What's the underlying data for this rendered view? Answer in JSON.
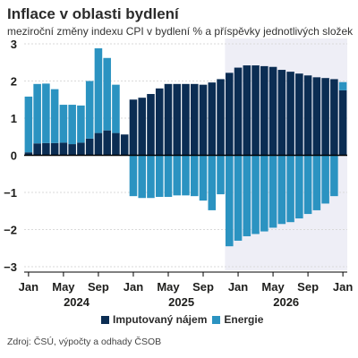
{
  "title": "Inflace v oblasti bydlení",
  "subtitle": "meziroční změny indexu CPI v bydlení % a příspěvky jednotlivých složek",
  "source": "Zdroj: ČSÚ, výpočty a odhady ČSOB",
  "colors": {
    "imputed_rent": "#0b2d53",
    "energy": "#2b93c1",
    "forecast_shade": "#eeeef6",
    "grid": "#d9d9d9",
    "zero_line": "#000000"
  },
  "chart_data": {
    "type": "bar",
    "stacked": true,
    "ylim": [
      -3,
      3
    ],
    "yticks": [
      3,
      2,
      1,
      0,
      -1,
      -2,
      -3
    ],
    "forecast_start": "2025-12",
    "x_ticks": [
      {
        "index": 0,
        "label": "Jan"
      },
      {
        "index": 4,
        "label": "May"
      },
      {
        "index": 8,
        "label": "Sep"
      },
      {
        "index": 12,
        "label": "Jan"
      },
      {
        "index": 16,
        "label": "May"
      },
      {
        "index": 20,
        "label": "Sep"
      },
      {
        "index": 24,
        "label": "Jan"
      },
      {
        "index": 28,
        "label": "May"
      },
      {
        "index": 32,
        "label": "Sep"
      },
      {
        "index": 36,
        "label": "Jan"
      }
    ],
    "year_labels": [
      {
        "index": 5.5,
        "label": "2024"
      },
      {
        "index": 17.5,
        "label": "2025"
      },
      {
        "index": 29.5,
        "label": "2026"
      }
    ],
    "categories": [
      "2024-01",
      "2024-02",
      "2024-03",
      "2024-04",
      "2024-05",
      "2024-06",
      "2024-07",
      "2024-08",
      "2024-09",
      "2024-10",
      "2024-11",
      "2024-12",
      "2025-01",
      "2025-02",
      "2025-03",
      "2025-04",
      "2025-05",
      "2025-06",
      "2025-07",
      "2025-08",
      "2025-09",
      "2025-10",
      "2025-11",
      "2025-12",
      "2026-01",
      "2026-02",
      "2026-03",
      "2026-04",
      "2026-05",
      "2026-06",
      "2026-07",
      "2026-08",
      "2026-09",
      "2026-10",
      "2026-11",
      "2026-12",
      "2027-01"
    ],
    "series": [
      {
        "name": "Imputovaný nájem",
        "color_key": "imputed_rent",
        "values": [
          0.08,
          0.32,
          0.33,
          0.33,
          0.34,
          0.3,
          0.34,
          0.45,
          0.6,
          0.67,
          0.6,
          0.56,
          1.5,
          1.55,
          1.65,
          1.8,
          1.92,
          1.92,
          1.92,
          1.92,
          1.9,
          1.96,
          2.05,
          2.22,
          2.36,
          2.42,
          2.42,
          2.4,
          2.38,
          2.3,
          2.25,
          2.2,
          2.15,
          2.1,
          2.08,
          2.05,
          1.75
        ]
      },
      {
        "name": "Energie",
        "color_key": "energy",
        "values": [
          1.5,
          1.6,
          1.6,
          1.45,
          1.02,
          1.06,
          1.0,
          1.55,
          2.28,
          1.95,
          1.3,
          0,
          -1.1,
          -1.15,
          -1.15,
          -1.12,
          -1.12,
          -1.08,
          -1.08,
          -1.1,
          -1.22,
          -1.48,
          -1.05,
          -2.45,
          -2.3,
          -2.18,
          -2.12,
          -2.05,
          -1.95,
          -1.85,
          -1.8,
          -1.7,
          -1.58,
          -1.48,
          -1.3,
          -1.1,
          0.22
        ]
      }
    ]
  }
}
